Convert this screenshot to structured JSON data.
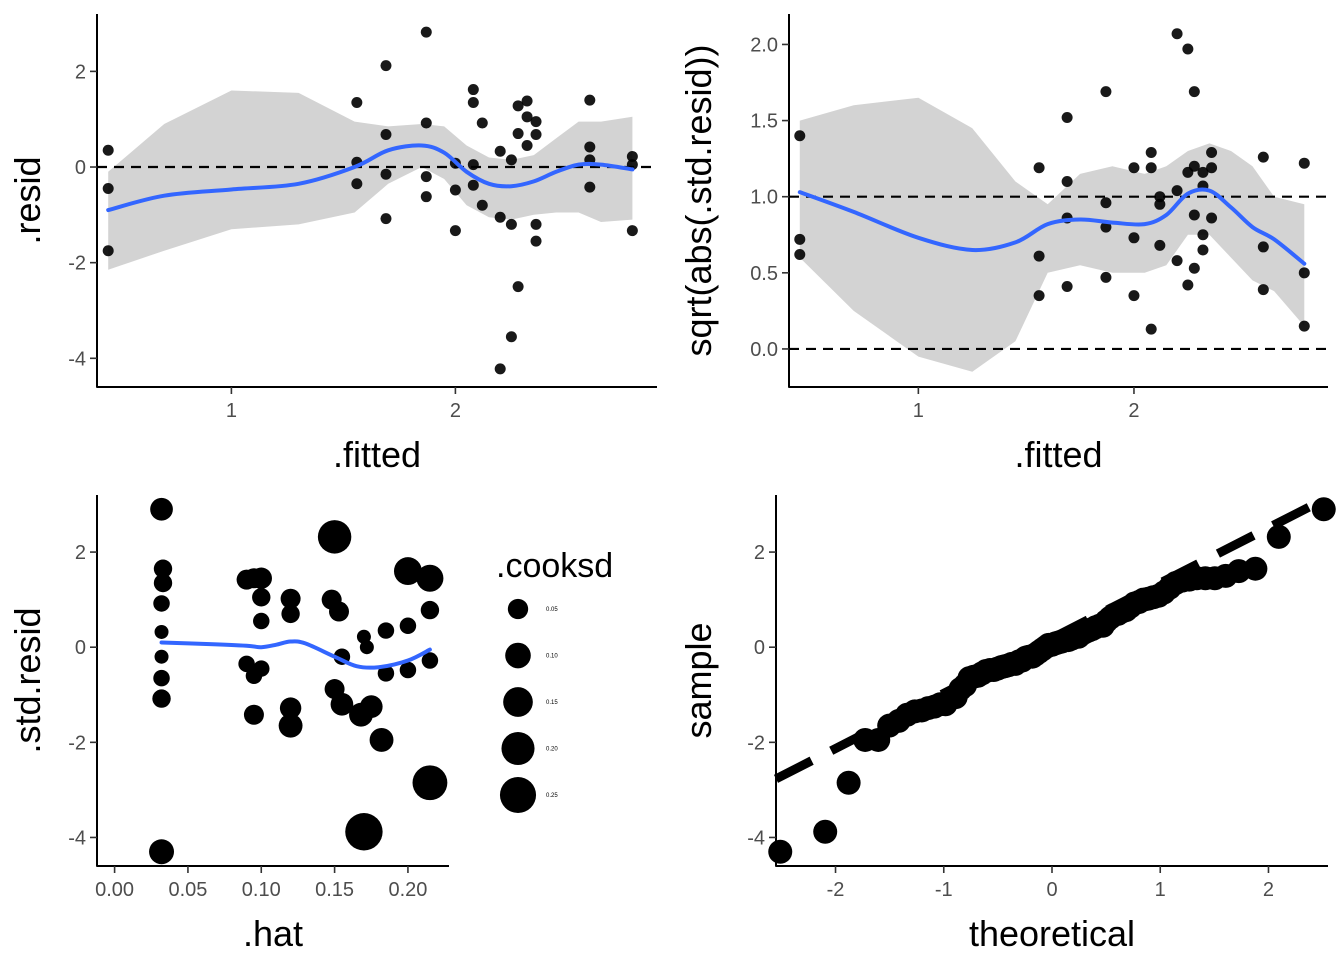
{
  "chart_data": [
    {
      "type": "scatter",
      "xlabel": ".fitted",
      "ylabel": ".resid",
      "xlim": [
        0.4,
        2.9
      ],
      "ylim": [
        -4.6,
        3.2
      ],
      "xticks": [
        1,
        2
      ],
      "yticks": [
        -4,
        -2,
        0,
        2
      ],
      "hlines": [
        0
      ],
      "points": [
        [
          0.45,
          0.35
        ],
        [
          0.45,
          -0.45
        ],
        [
          0.45,
          -1.75
        ],
        [
          1.56,
          1.35
        ],
        [
          1.56,
          0.1
        ],
        [
          1.56,
          -0.35
        ],
        [
          1.69,
          2.12
        ],
        [
          1.69,
          0.68
        ],
        [
          1.69,
          -0.15
        ],
        [
          1.69,
          -1.08
        ],
        [
          1.87,
          2.82
        ],
        [
          1.87,
          0.92
        ],
        [
          1.87,
          -0.2
        ],
        [
          1.87,
          -0.62
        ],
        [
          2.0,
          0.08
        ],
        [
          2.0,
          -0.48
        ],
        [
          2.0,
          -1.33
        ],
        [
          2.08,
          1.62
        ],
        [
          2.08,
          1.35
        ],
        [
          2.08,
          0.05
        ],
        [
          2.08,
          -0.38
        ],
        [
          2.12,
          0.92
        ],
        [
          2.12,
          -0.8
        ],
        [
          2.2,
          0.33
        ],
        [
          2.2,
          -1.05
        ],
        [
          2.2,
          -4.22
        ],
        [
          2.25,
          0.15
        ],
        [
          2.25,
          -1.2
        ],
        [
          2.25,
          -3.55
        ],
        [
          2.28,
          1.28
        ],
        [
          2.28,
          0.7
        ],
        [
          2.28,
          -2.5
        ],
        [
          2.32,
          1.38
        ],
        [
          2.32,
          1.05
        ],
        [
          2.32,
          0.45
        ],
        [
          2.36,
          0.95
        ],
        [
          2.36,
          0.68
        ],
        [
          2.36,
          -1.2
        ],
        [
          2.36,
          -1.55
        ],
        [
          2.6,
          1.4
        ],
        [
          2.6,
          0.42
        ],
        [
          2.6,
          0.15
        ],
        [
          2.6,
          -0.42
        ],
        [
          2.79,
          0.22
        ],
        [
          2.79,
          0.05
        ],
        [
          2.79,
          -1.33
        ]
      ],
      "smooth": {
        "x": [
          0.45,
          0.7,
          1.0,
          1.3,
          1.55,
          1.7,
          1.85,
          1.95,
          2.05,
          2.15,
          2.25,
          2.35,
          2.45,
          2.55,
          2.65,
          2.79
        ],
        "y": [
          -0.9,
          -0.6,
          -0.47,
          -0.35,
          0.0,
          0.35,
          0.45,
          0.3,
          -0.1,
          -0.35,
          -0.4,
          -0.3,
          -0.1,
          0.05,
          0.05,
          -0.05
        ],
        "upper": [
          -0.1,
          0.9,
          1.6,
          1.55,
          0.95,
          0.85,
          0.9,
          0.85,
          0.45,
          0.2,
          0.15,
          0.25,
          0.6,
          0.95,
          0.95,
          1.05
        ],
        "lower": [
          -2.15,
          -1.75,
          -1.3,
          -1.2,
          -0.95,
          -0.35,
          0.0,
          -0.25,
          -0.8,
          -1.05,
          -1.1,
          -1.0,
          -0.95,
          -0.95,
          -1.15,
          -1.1
        ]
      }
    },
    {
      "type": "scatter",
      "xlabel": ".fitted",
      "ylabel": "sqrt(abs(.std.resid))",
      "xlim": [
        0.4,
        2.9
      ],
      "ylim": [
        -0.25,
        2.2
      ],
      "xticks": [
        1,
        2
      ],
      "yticks": [
        0.0,
        0.5,
        1.0,
        1.5,
        2.0
      ],
      "ytick_labels": [
        "0.0",
        "0.5",
        "1.0",
        "1.5",
        "2.0"
      ],
      "hlines": [
        0,
        1
      ],
      "points": [
        [
          0.45,
          1.4
        ],
        [
          0.45,
          0.72
        ],
        [
          0.45,
          0.62
        ],
        [
          1.56,
          1.19
        ],
        [
          1.56,
          0.61
        ],
        [
          1.56,
          0.35
        ],
        [
          1.69,
          1.52
        ],
        [
          1.69,
          1.1
        ],
        [
          1.69,
          0.86
        ],
        [
          1.69,
          0.41
        ],
        [
          1.87,
          1.69
        ],
        [
          1.87,
          0.96
        ],
        [
          1.87,
          0.8
        ],
        [
          1.87,
          0.47
        ],
        [
          2.0,
          1.19
        ],
        [
          2.0,
          0.73
        ],
        [
          2.0,
          0.35
        ],
        [
          2.08,
          1.29
        ],
        [
          2.08,
          1.19
        ],
        [
          2.08,
          0.13
        ],
        [
          2.12,
          1.0
        ],
        [
          2.12,
          0.95
        ],
        [
          2.12,
          0.68
        ],
        [
          2.2,
          2.07
        ],
        [
          2.2,
          1.04
        ],
        [
          2.2,
          0.58
        ],
        [
          2.25,
          1.97
        ],
        [
          2.25,
          1.16
        ],
        [
          2.25,
          0.42
        ],
        [
          2.28,
          1.69
        ],
        [
          2.28,
          1.2
        ],
        [
          2.28,
          0.88
        ],
        [
          2.28,
          0.53
        ],
        [
          2.32,
          1.16
        ],
        [
          2.32,
          1.07
        ],
        [
          2.32,
          0.75
        ],
        [
          2.32,
          0.65
        ],
        [
          2.36,
          1.29
        ],
        [
          2.36,
          1.19
        ],
        [
          2.36,
          0.86
        ],
        [
          2.6,
          1.26
        ],
        [
          2.6,
          0.67
        ],
        [
          2.6,
          0.39
        ],
        [
          2.79,
          1.22
        ],
        [
          2.79,
          0.5
        ],
        [
          2.79,
          0.15
        ]
      ],
      "smooth": {
        "x": [
          0.45,
          0.7,
          1.0,
          1.25,
          1.45,
          1.6,
          1.75,
          1.9,
          2.05,
          2.15,
          2.25,
          2.35,
          2.45,
          2.55,
          2.65,
          2.79
        ],
        "y": [
          1.03,
          0.9,
          0.73,
          0.65,
          0.7,
          0.82,
          0.85,
          0.83,
          0.82,
          0.88,
          1.02,
          1.04,
          0.93,
          0.8,
          0.72,
          0.56
        ],
        "upper": [
          1.5,
          1.6,
          1.65,
          1.45,
          1.1,
          0.95,
          1.15,
          1.2,
          1.15,
          1.2,
          1.3,
          1.35,
          1.3,
          1.2,
          1.0,
          0.95
        ],
        "lower": [
          0.6,
          0.25,
          -0.05,
          -0.15,
          0.05,
          0.5,
          0.55,
          0.5,
          0.5,
          0.55,
          0.75,
          0.75,
          0.6,
          0.45,
          0.38,
          0.15
        ]
      }
    },
    {
      "type": "scatter",
      "xlabel": ".hat",
      "ylabel": ".std.resid",
      "xlim": [
        -0.012,
        0.228
      ],
      "ylim": [
        -4.6,
        3.2
      ],
      "xticks": [
        0.0,
        0.05,
        0.1,
        0.15,
        0.2
      ],
      "xtick_labels": [
        "0.00",
        "0.05",
        "0.10",
        "0.15",
        "0.20"
      ],
      "yticks": [
        -4,
        -2,
        0,
        2
      ],
      "legend": {
        "title": ".cooksd",
        "values": [
          0.05,
          0.1,
          0.15,
          0.2,
          0.25
        ],
        "labels": [
          "0.05",
          "0.10",
          "0.15",
          "0.20",
          "0.25"
        ],
        "position": "right"
      },
      "points": [
        [
          0.032,
          2.9,
          0.06
        ],
        [
          0.033,
          1.65,
          0.03
        ],
        [
          0.033,
          1.35,
          0.03
        ],
        [
          0.032,
          0.92,
          0.02
        ],
        [
          0.032,
          0.32,
          0.01
        ],
        [
          0.032,
          -0.2,
          0.01
        ],
        [
          0.032,
          -0.65,
          0.02
        ],
        [
          0.032,
          -1.08,
          0.03
        ],
        [
          0.032,
          -4.3,
          0.08
        ],
        [
          0.09,
          1.42,
          0.04
        ],
        [
          0.095,
          1.45,
          0.04
        ],
        [
          0.1,
          1.45,
          0.05
        ],
        [
          0.1,
          1.05,
          0.03
        ],
        [
          0.1,
          0.55,
          0.02
        ],
        [
          0.09,
          -0.35,
          0.02
        ],
        [
          0.095,
          -0.6,
          0.02
        ],
        [
          0.1,
          -0.45,
          0.02
        ],
        [
          0.095,
          -1.42,
          0.04
        ],
        [
          0.12,
          1.02,
          0.04
        ],
        [
          0.12,
          0.7,
          0.03
        ],
        [
          0.12,
          -1.28,
          0.05
        ],
        [
          0.12,
          -1.65,
          0.07
        ],
        [
          0.15,
          2.32,
          0.18
        ],
        [
          0.148,
          1.0,
          0.04
        ],
        [
          0.153,
          0.75,
          0.04
        ],
        [
          0.155,
          -0.2,
          0.02
        ],
        [
          0.15,
          -0.88,
          0.04
        ],
        [
          0.155,
          -1.2,
          0.06
        ],
        [
          0.168,
          -1.42,
          0.07
        ],
        [
          0.17,
          -3.88,
          0.24
        ],
        [
          0.17,
          0.22,
          0.01
        ],
        [
          0.172,
          0.0,
          0.01
        ],
        [
          0.175,
          -1.25,
          0.06
        ],
        [
          0.182,
          -1.95,
          0.07
        ],
        [
          0.185,
          0.35,
          0.02
        ],
        [
          0.185,
          -0.55,
          0.02
        ],
        [
          0.2,
          1.6,
          0.11
        ],
        [
          0.2,
          0.45,
          0.02
        ],
        [
          0.2,
          -0.48,
          0.02
        ],
        [
          0.215,
          1.45,
          0.1
        ],
        [
          0.215,
          0.78,
          0.03
        ],
        [
          0.215,
          -0.28,
          0.02
        ],
        [
          0.215,
          -2.85,
          0.2
        ]
      ],
      "smooth": {
        "x": [
          0.032,
          0.06,
          0.09,
          0.1,
          0.11,
          0.12,
          0.13,
          0.15,
          0.165,
          0.18,
          0.2,
          0.215
        ],
        "y": [
          0.1,
          0.07,
          0.03,
          0.0,
          0.05,
          0.12,
          0.08,
          -0.2,
          -0.4,
          -0.42,
          -0.28,
          -0.05
        ]
      }
    },
    {
      "type": "scatter",
      "xlabel": "theoretical",
      "ylabel": "sample",
      "xlim": [
        -2.55,
        2.55
      ],
      "ylim": [
        -4.6,
        3.2
      ],
      "xticks": [
        -2,
        -1,
        0,
        1,
        2
      ],
      "yticks": [
        -4,
        -2,
        0,
        2
      ],
      "qq_line": {
        "slope": 1.16,
        "intercept": 0.19
      },
      "sample": [
        -4.3,
        -3.88,
        -2.85,
        -1.95,
        -1.95,
        -1.65,
        -1.55,
        -1.42,
        -1.35,
        -1.33,
        -1.28,
        -1.25,
        -1.2,
        -1.2,
        -1.08,
        -1.05,
        -0.88,
        -0.8,
        -0.65,
        -0.62,
        -0.6,
        -0.55,
        -0.5,
        -0.48,
        -0.48,
        -0.45,
        -0.42,
        -0.4,
        -0.38,
        -0.35,
        -0.35,
        -0.3,
        -0.28,
        -0.22,
        -0.2,
        -0.2,
        -0.15,
        -0.1,
        -0.05,
        0.0,
        0.05,
        0.05,
        0.08,
        0.1,
        0.12,
        0.15,
        0.15,
        0.18,
        0.22,
        0.22,
        0.28,
        0.32,
        0.35,
        0.38,
        0.42,
        0.45,
        0.45,
        0.55,
        0.62,
        0.68,
        0.7,
        0.75,
        0.78,
        0.85,
        0.92,
        0.95,
        1.0,
        1.02,
        1.05,
        1.08,
        1.15,
        1.25,
        1.35,
        1.4,
        1.42,
        1.45,
        1.45,
        1.45,
        1.5,
        1.6,
        1.65,
        2.32,
        2.9
      ]
    }
  ]
}
